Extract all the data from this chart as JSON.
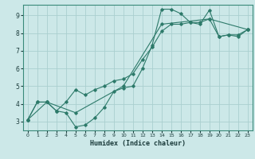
{
  "title": "",
  "xlabel": "Humidex (Indice chaleur)",
  "bg_color": "#cce8e8",
  "line_color": "#2d7a6a",
  "grid_color": "#aacfcf",
  "xlim": [
    -0.5,
    23.5
  ],
  "ylim": [
    2.5,
    9.6
  ],
  "xticks": [
    0,
    1,
    2,
    3,
    4,
    5,
    6,
    7,
    8,
    9,
    10,
    11,
    12,
    13,
    14,
    15,
    16,
    17,
    18,
    19,
    20,
    21,
    22,
    23
  ],
  "yticks": [
    3,
    4,
    5,
    6,
    7,
    8,
    9
  ],
  "line1_x": [
    0,
    1,
    2,
    3,
    4,
    5,
    6,
    7,
    8,
    9,
    10,
    11,
    12,
    13,
    14,
    15,
    16,
    17,
    18,
    19,
    20,
    21,
    22,
    23
  ],
  "line1_y": [
    3.1,
    4.1,
    4.1,
    3.6,
    3.5,
    2.7,
    2.8,
    3.2,
    3.8,
    4.7,
    4.9,
    5.0,
    6.0,
    7.3,
    9.35,
    9.35,
    9.1,
    8.6,
    8.5,
    9.3,
    7.8,
    7.9,
    7.8,
    8.2
  ],
  "line2_x": [
    0,
    1,
    2,
    3,
    4,
    5,
    6,
    7,
    8,
    9,
    10,
    11,
    12,
    13,
    14,
    15,
    16,
    17,
    18,
    19,
    20,
    21,
    22,
    23
  ],
  "line2_y": [
    3.1,
    4.1,
    4.1,
    3.6,
    4.1,
    4.8,
    4.5,
    4.8,
    5.0,
    5.3,
    5.4,
    5.7,
    6.5,
    7.2,
    8.1,
    8.5,
    8.5,
    8.6,
    8.6,
    8.8,
    7.8,
    7.9,
    7.9,
    8.2
  ],
  "line3_x": [
    0,
    2,
    5,
    10,
    14,
    19,
    23
  ],
  "line3_y": [
    3.1,
    4.1,
    3.5,
    5.0,
    8.5,
    8.8,
    8.2
  ]
}
